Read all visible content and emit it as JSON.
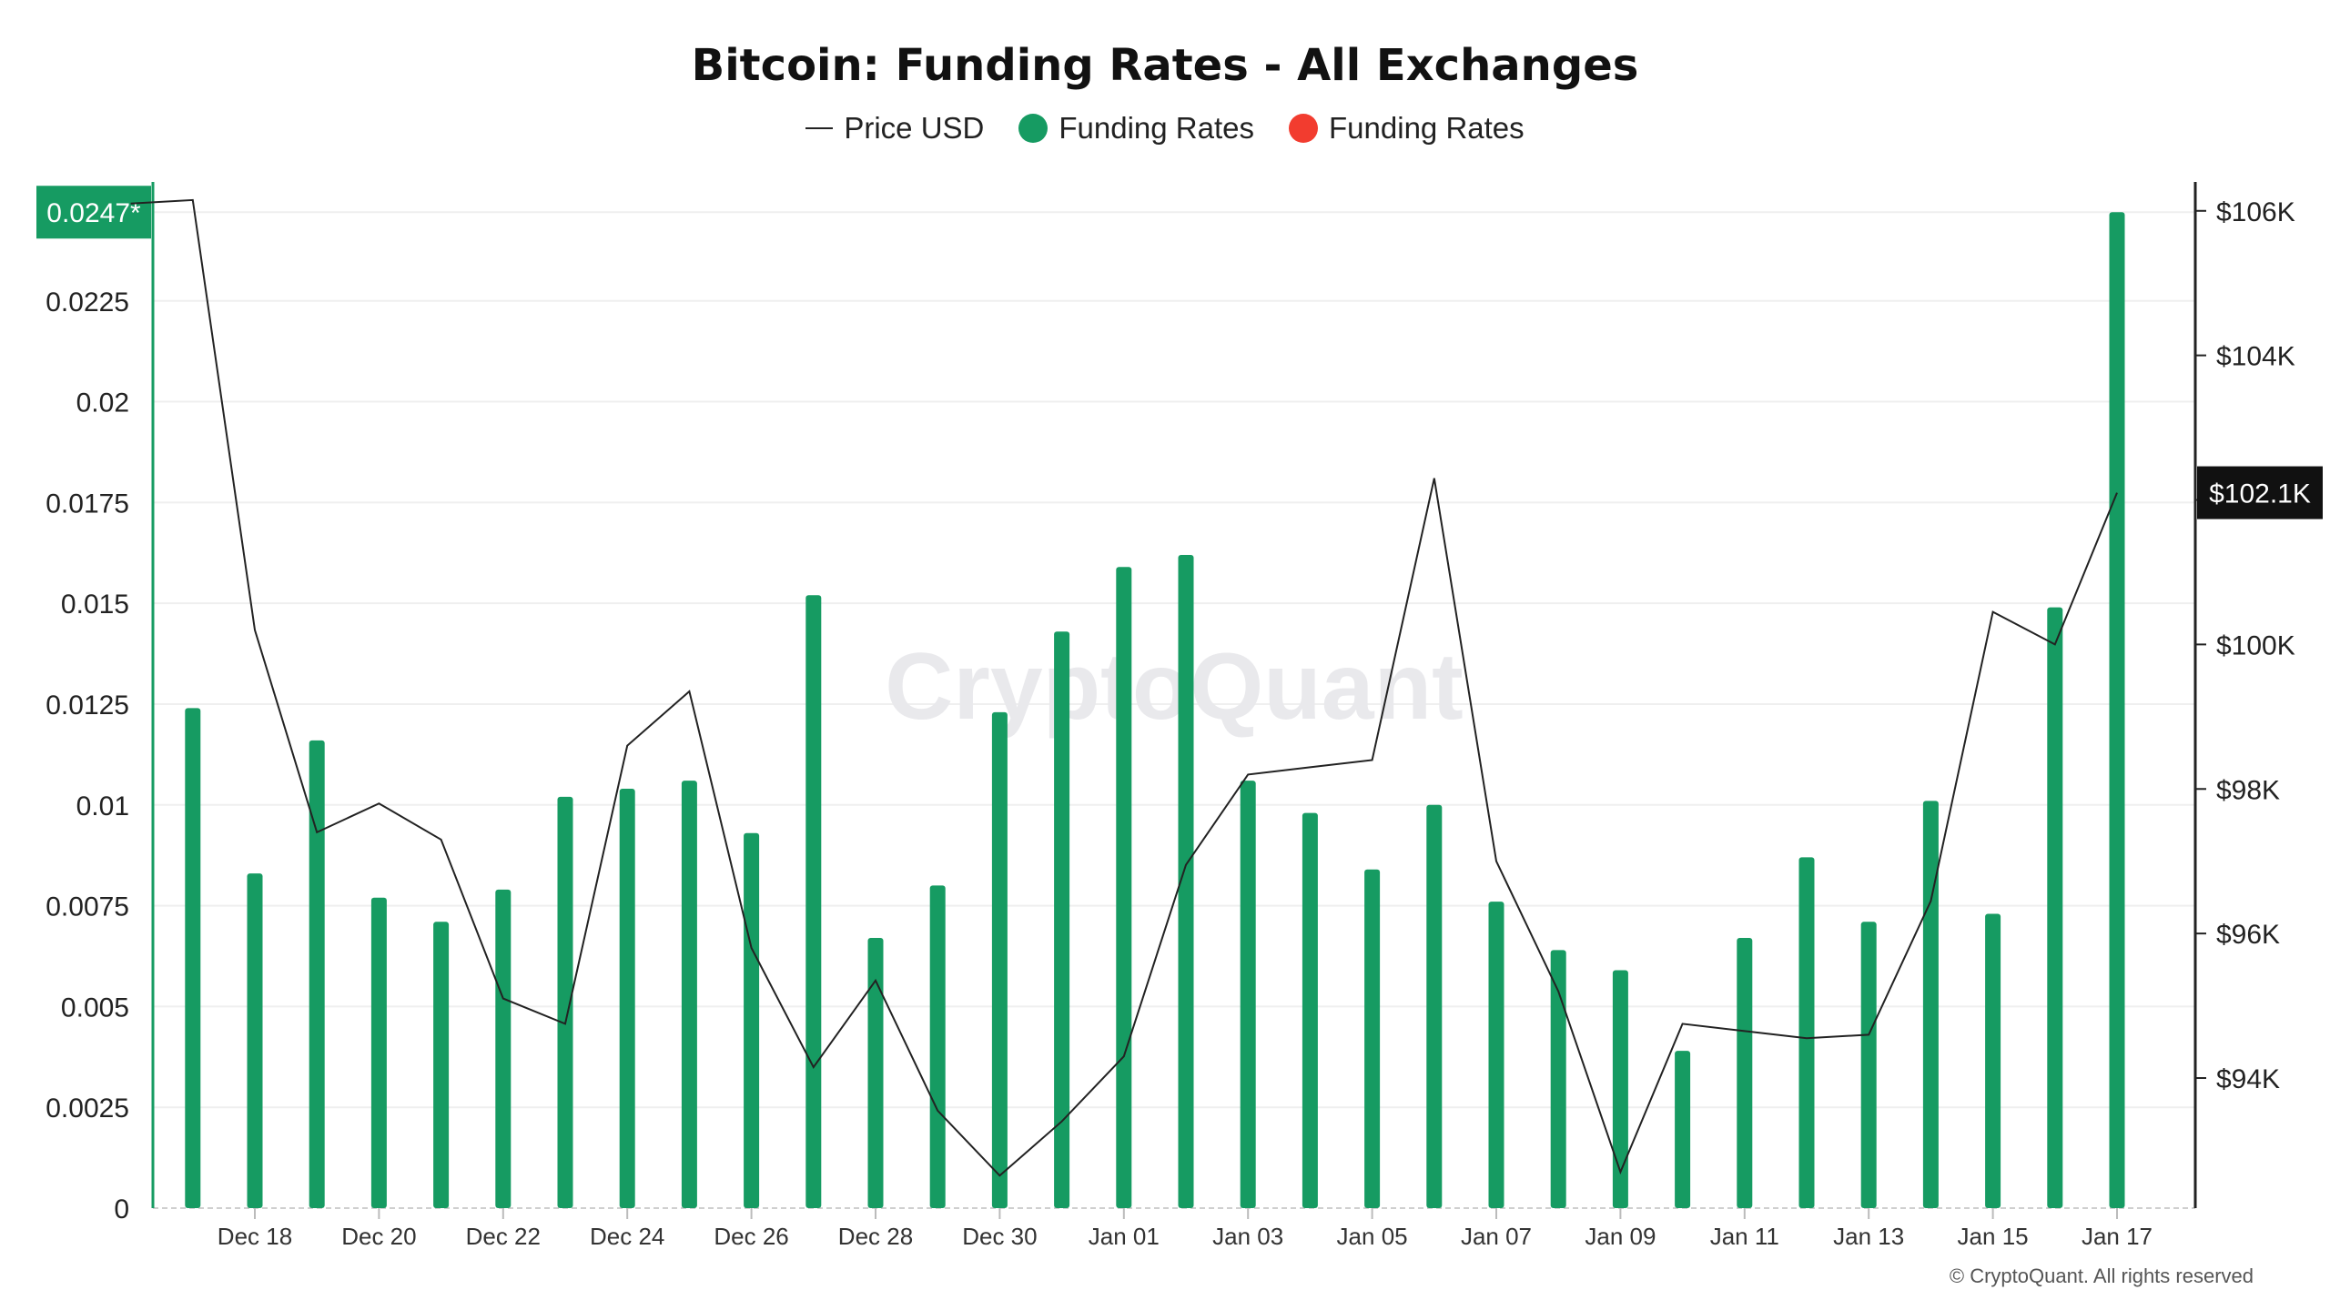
{
  "chart_data": {
    "type": "bar",
    "title": "Bitcoin: Funding Rates - All Exchanges",
    "watermark": "CryptoQuant",
    "copyright": "© CryptoQuant. All rights reserved",
    "legend": [
      {
        "label": "Price USD",
        "kind": "line",
        "color": "#222222"
      },
      {
        "label": "Funding Rates",
        "kind": "dot",
        "color": "#169b62"
      },
      {
        "label": "Funding Rates",
        "kind": "dot",
        "color": "#f23c2f"
      }
    ],
    "legend_placement": "top",
    "colors": {
      "positive": "#169b62",
      "negative": "#f23c2f",
      "price_line": "#222222",
      "axis_left": "#169b62",
      "axis_right": "#222222"
    },
    "x_tick_labels": [
      "Dec 18",
      "Dec 20",
      "Dec 22",
      "Dec 24",
      "Dec 26",
      "Dec 28",
      "Dec 30",
      "Jan 01",
      "Jan 03",
      "Jan 05",
      "Jan 07",
      "Jan 09",
      "Jan 11",
      "Jan 13",
      "Jan 15",
      "Jan 17"
    ],
    "y_left": {
      "ticks": [
        0,
        0.0025,
        0.005,
        0.0075,
        0.01,
        0.0125,
        0.015,
        0.0175,
        0.02,
        0.0225
      ],
      "tick_labels": [
        "0",
        "0.0025",
        "0.005",
        "0.0075",
        "0.01",
        "0.0125",
        "0.015",
        "0.0175",
        "0.02",
        "0.0225"
      ],
      "range": [
        0,
        0.02545
      ],
      "current_label": "0.0247*",
      "current_value": 0.0247
    },
    "y_right": {
      "ticks": [
        94000,
        96000,
        98000,
        100000,
        102000,
        104000,
        106000
      ],
      "tick_labels": [
        "$94K",
        "$96K",
        "$98K",
        "$100K",
        "$102K",
        "$104K",
        "$106K"
      ],
      "range": [
        92200,
        106400
      ],
      "current_label": "$102.1K",
      "current_value": 102100
    },
    "grid": true,
    "x": [
      "2024-12-17",
      "2024-12-18",
      "2024-12-19",
      "2024-12-20",
      "2024-12-21",
      "2024-12-22",
      "2024-12-23",
      "2024-12-24",
      "2024-12-25",
      "2024-12-26",
      "2024-12-27",
      "2024-12-28",
      "2024-12-29",
      "2024-12-30",
      "2024-12-31",
      "2025-01-01",
      "2025-01-02",
      "2025-01-03",
      "2025-01-04",
      "2025-01-05",
      "2025-01-06",
      "2025-01-07",
      "2025-01-08",
      "2025-01-09",
      "2025-01-10",
      "2025-01-11",
      "2025-01-12",
      "2025-01-13",
      "2025-01-14",
      "2025-01-15",
      "2025-01-16",
      "2025-01-17"
    ],
    "series": [
      {
        "name": "Funding Rates",
        "type": "bar",
        "axis": "left",
        "values": [
          0.0124,
          0.0083,
          0.0116,
          0.0077,
          0.0071,
          0.0079,
          0.0102,
          0.0104,
          0.0106,
          0.0093,
          0.0152,
          0.0067,
          0.008,
          0.0123,
          0.0143,
          0.0159,
          0.0162,
          0.0106,
          0.0098,
          0.0084,
          0.01,
          0.0076,
          0.0064,
          0.0059,
          0.0039,
          0.0067,
          0.0087,
          0.0071,
          0.0101,
          0.0073,
          0.0149,
          0.0247
        ]
      },
      {
        "name": "Price USD",
        "type": "line",
        "axis": "right",
        "x": [
          "2024-12-16",
          "2024-12-17",
          "2024-12-18",
          "2024-12-19",
          "2024-12-20",
          "2024-12-21",
          "2024-12-22",
          "2024-12-23",
          "2024-12-24",
          "2024-12-25",
          "2024-12-26",
          "2024-12-27",
          "2024-12-28",
          "2024-12-29",
          "2024-12-30",
          "2024-12-31",
          "2025-01-01",
          "2025-01-02",
          "2025-01-03",
          "2025-01-04",
          "2025-01-05",
          "2025-01-06",
          "2025-01-07",
          "2025-01-08",
          "2025-01-09",
          "2025-01-10",
          "2025-01-11",
          "2025-01-12",
          "2025-01-13",
          "2025-01-14",
          "2025-01-15",
          "2025-01-16",
          "2025-01-17"
        ],
        "values": [
          106100,
          106150,
          100200,
          97400,
          97800,
          97300,
          95100,
          94750,
          98600,
          99350,
          95800,
          94150,
          95350,
          93550,
          92650,
          93400,
          94300,
          96950,
          98200,
          98300,
          98400,
          102300,
          97000,
          95200,
          92700,
          94750,
          94650,
          94550,
          94600,
          96450,
          100450,
          100000,
          102100
        ]
      }
    ]
  }
}
